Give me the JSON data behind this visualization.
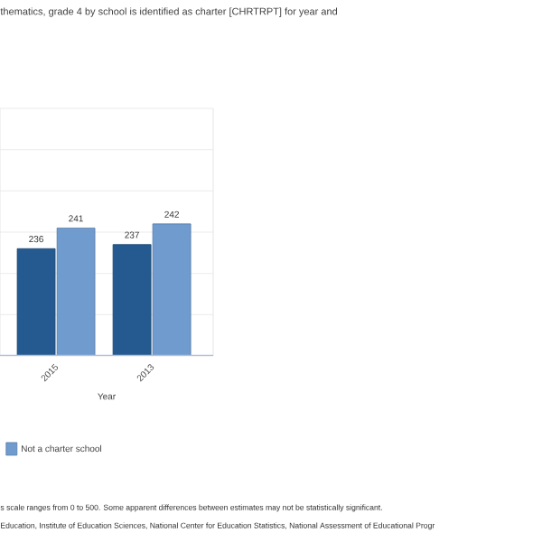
{
  "chart_data": {
    "type": "bar",
    "title": "thematics, grade 4 by school is identified as charter [CHRTRPT] for year and",
    "xlabel": "Year",
    "categories": [
      "2015",
      "2013"
    ],
    "series": [
      {
        "color": "#245a8f",
        "values": [
          236,
          237
        ]
      },
      {
        "name": "Not a charter school",
        "color": "#6f9bcf",
        "values": [
          241,
          242
        ]
      }
    ],
    "ylim": [
      210,
      270
    ],
    "yticks": [
      {
        "value": 220,
        "label": null
      },
      {
        "value": 230,
        "label": null
      },
      {
        "value": 240,
        "label": null
      },
      {
        "value": 250,
        "label": null
      },
      {
        "value": 260,
        "label": null
      },
      {
        "value": 270,
        "label": null
      }
    ],
    "tick_labels": "x",
    "grid": "y",
    "data_labels": true,
    "legend": "bottom left",
    "annotations": [
      "s scale ranges from 0 to 500. Some apparent differences between estimates may not be statistically significant.",
      "Education, Institute of Education Sciences, National Center for Education Statistics, National Assessment of Educational Progr"
    ]
  }
}
